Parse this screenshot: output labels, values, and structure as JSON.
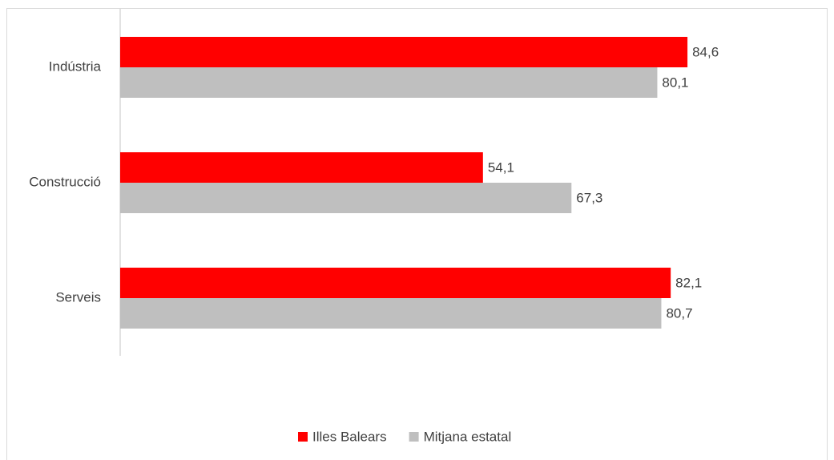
{
  "chart_data": {
    "type": "bar",
    "orientation": "horizontal",
    "categories": [
      "Indústria",
      "Construcció",
      "Serveis"
    ],
    "series": [
      {
        "name": "Illes Balears",
        "color": "#ff0000",
        "values": [
          84.6,
          54.1,
          82.1
        ],
        "value_labels": [
          "84,6",
          "54,1",
          "82,1"
        ]
      },
      {
        "name": "Mitjana estatal",
        "color": "#bfbfbf",
        "values": [
          80.1,
          67.3,
          80.7
        ],
        "value_labels": [
          "80,1",
          "67,3",
          "80,7"
        ]
      }
    ],
    "xlim": [
      0,
      100
    ],
    "legend": "bottom"
  }
}
